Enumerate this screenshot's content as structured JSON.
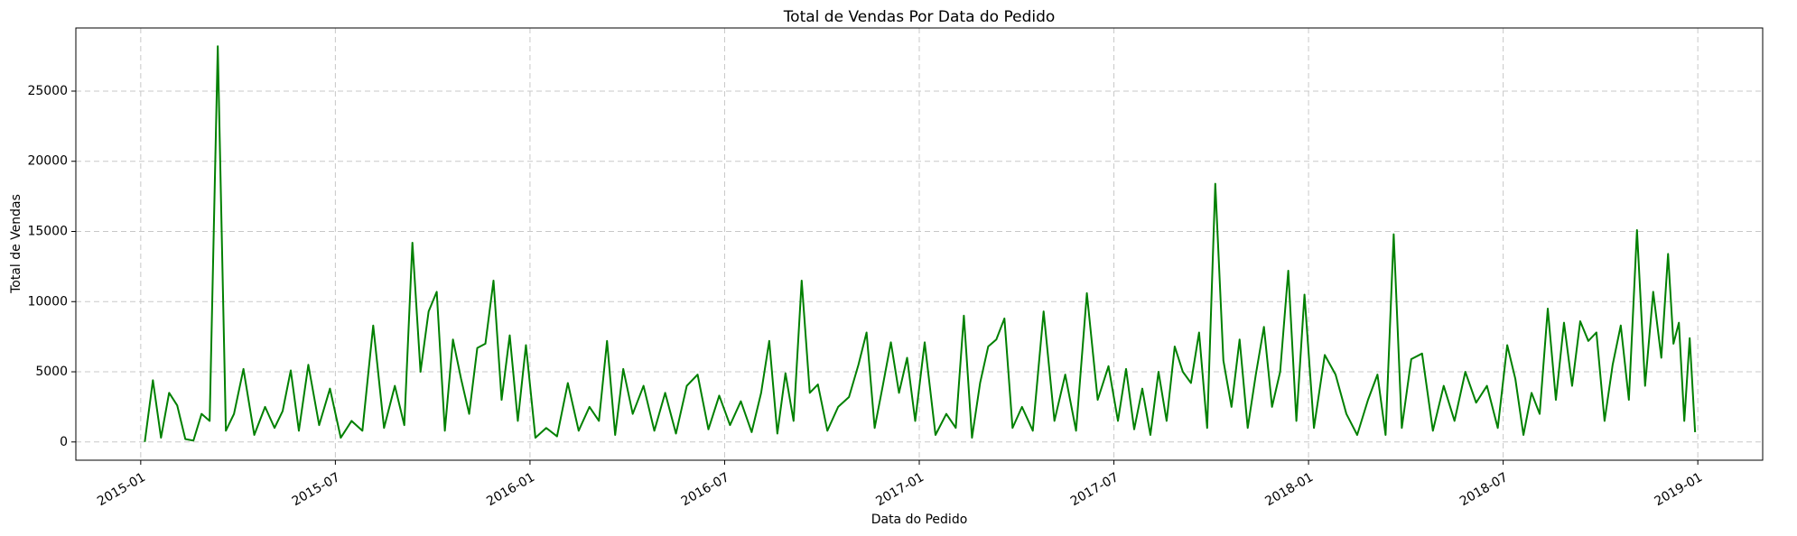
{
  "chart_data": {
    "type": "line",
    "title": "Total de Vendas Por Data do Pedido",
    "xlabel": "Data do Pedido",
    "ylabel": "Total de Vendas",
    "color": "#008000",
    "grid": true,
    "x": [
      "2015-01",
      "2015-01",
      "2015-01",
      "2015-01",
      "2015-02",
      "2015-02",
      "2015-02",
      "2015-02",
      "2015-03",
      "2015-03",
      "2015-03",
      "2015-03",
      "2015-04",
      "2015-04",
      "2015-04",
      "2015-05",
      "2015-05",
      "2015-05",
      "2015-05",
      "2015-06",
      "2015-06",
      "2015-06",
      "2015-07",
      "2015-07",
      "2015-07",
      "2015-08",
      "2015-08",
      "2015-08",
      "2015-09",
      "2015-09",
      "2015-09",
      "2015-09",
      "2015-10",
      "2015-10",
      "2015-10",
      "2015-10",
      "2015-11",
      "2015-11",
      "2015-11",
      "2015-11",
      "2015-12",
      "2015-12",
      "2015-12",
      "2015-12",
      "2016-01",
      "2016-01",
      "2016-01",
      "2016-02",
      "2016-02",
      "2016-02",
      "2016-03",
      "2016-03",
      "2016-03",
      "2016-03",
      "2016-04",
      "2016-04",
      "2016-04",
      "2016-05",
      "2016-05",
      "2016-05",
      "2016-06",
      "2016-06",
      "2016-06",
      "2016-07",
      "2016-07",
      "2016-07",
      "2016-08",
      "2016-08",
      "2016-08",
      "2016-08",
      "2016-09",
      "2016-09",
      "2016-09",
      "2016-09",
      "2016-10",
      "2016-10",
      "2016-10",
      "2016-11",
      "2016-11",
      "2016-11",
      "2016-11",
      "2016-12",
      "2016-12",
      "2016-12",
      "2016-12",
      "2017-01",
      "2017-01",
      "2017-01",
      "2017-02",
      "2017-02",
      "2017-02",
      "2017-02",
      "2017-03",
      "2017-03",
      "2017-03",
      "2017-03",
      "2017-04",
      "2017-04",
      "2017-04",
      "2017-05",
      "2017-05",
      "2017-05",
      "2017-06",
      "2017-06",
      "2017-06",
      "2017-07",
      "2017-07",
      "2017-07",
      "2017-07",
      "2017-08",
      "2017-08",
      "2017-08",
      "2017-08",
      "2017-09",
      "2017-09",
      "2017-09",
      "2017-09",
      "2017-10",
      "2017-10",
      "2017-10",
      "2017-10",
      "2017-11",
      "2017-11",
      "2017-11",
      "2017-11",
      "2017-12",
      "2017-12",
      "2017-12",
      "2017-12",
      "2018-01",
      "2018-01",
      "2018-01",
      "2018-02",
      "2018-02",
      "2018-02",
      "2018-03",
      "2018-03",
      "2018-03",
      "2018-03",
      "2018-04",
      "2018-04",
      "2018-04",
      "2018-05",
      "2018-05",
      "2018-05",
      "2018-06",
      "2018-06",
      "2018-06",
      "2018-07",
      "2018-07",
      "2018-07",
      "2018-07",
      "2018-08",
      "2018-08",
      "2018-08",
      "2018-08",
      "2018-09",
      "2018-09",
      "2018-09",
      "2018-09",
      "2018-10",
      "2018-10",
      "2018-10",
      "2018-10",
      "2018-11",
      "2018-11",
      "2018-11",
      "2018-11",
      "2018-12",
      "2018-12",
      "2018-12",
      "2018-12",
      "2018-12",
      "2018-12"
    ],
    "values": [
      0,
      4400,
      300,
      3500,
      2600,
      200,
      100,
      2000,
      1500,
      28200,
      800,
      2000,
      5200,
      500,
      2500,
      1000,
      2200,
      5100,
      800,
      5500,
      1200,
      3800,
      300,
      1500,
      800,
      8300,
      1000,
      4000,
      1200,
      14200,
      5000,
      9300,
      10700,
      800,
      7300,
      4500,
      2000,
      6700,
      7000,
      11500,
      3000,
      7600,
      1500,
      6900,
      300,
      1000,
      400,
      4200,
      800,
      2500,
      1500,
      7200,
      500,
      5200,
      2000,
      4000,
      800,
      3500,
      600,
      4000,
      4800,
      900,
      3300,
      1200,
      2900,
      700,
      3500,
      7200,
      600,
      4900,
      1500,
      11500,
      3500,
      4100,
      800,
      2500,
      3200,
      5500,
      7800,
      1000,
      4000,
      7100,
      3500,
      6000,
      1500,
      7100,
      500,
      2000,
      1000,
      9000,
      300,
      4200,
      6800,
      7300,
      8800,
      1000,
      2500,
      800,
      9300,
      1500,
      4800,
      800,
      10600,
      3000,
      5400,
      1500,
      5200,
      900,
      3800,
      500,
      5000,
      1500,
      6800,
      5000,
      4200,
      7800,
      1000,
      18400,
      5800,
      2500,
      7300,
      1000,
      4800,
      8200,
      2500,
      5000,
      12200,
      1500,
      10500,
      1000,
      6200,
      4800,
      2000,
      500,
      3000,
      4800,
      500,
      14800,
      1000,
      5900,
      6300,
      800,
      4000,
      1500,
      5000,
      2800,
      4000,
      1000,
      6900,
      4500,
      500,
      3500,
      2000,
      9500,
      3000,
      8500,
      4000,
      8600,
      7200,
      7800,
      1500,
      5500,
      8300,
      3000,
      15100,
      4000,
      10700,
      6000,
      13400,
      7000,
      8500,
      1500,
      7400,
      700
    ],
    "xlim": [
      "2014-11",
      "2019-03"
    ],
    "xticks": [
      "2015-01",
      "2015-07",
      "2016-01",
      "2016-07",
      "2017-01",
      "2017-07",
      "2018-01",
      "2018-07",
      "2019-01"
    ],
    "ylim": [
      -1300,
      29500
    ],
    "yticks": [
      0,
      5000,
      10000,
      15000,
      20000,
      25000
    ]
  }
}
